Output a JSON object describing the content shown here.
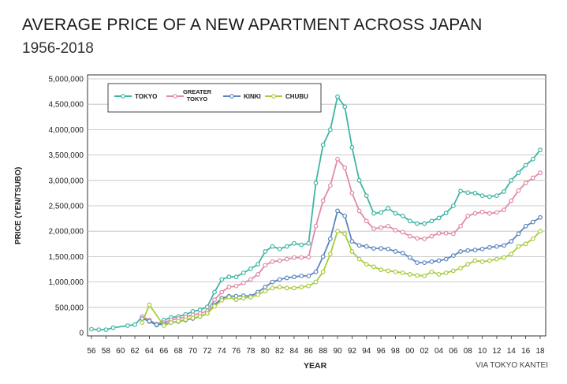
{
  "chart_data": {
    "type": "line",
    "title": "AVERAGE PRICE OF A NEW APARTMENT ACROSS JAPAN",
    "subtitle": "1956-2018",
    "xlabel": "YEAR",
    "ylabel": "PRICE (YEN/TSUBO)",
    "source": "VIA TOKYO KANTEI",
    "ylim": [
      0,
      5000000
    ],
    "xlim": [
      1956,
      2018
    ],
    "yticks": [
      0,
      500000,
      1000000,
      1500000,
      2000000,
      2500000,
      3000000,
      3500000,
      4000000,
      4500000,
      5000000
    ],
    "ytick_labels": [
      "0",
      "500,000",
      "1,000,000",
      "1,500,000",
      "2,000,000",
      "2,500,000",
      "3,000,000",
      "3,500,000",
      "4,000,000",
      "4,500,000",
      "5,000,000"
    ],
    "xticks": [
      1956,
      1958,
      1960,
      1962,
      1964,
      1966,
      1968,
      1970,
      1972,
      1974,
      1976,
      1978,
      1980,
      1982,
      1984,
      1986,
      1988,
      1990,
      1992,
      1994,
      1996,
      1998,
      2000,
      2002,
      2004,
      2006,
      2008,
      2010,
      2012,
      2014,
      2016,
      2018
    ],
    "xtick_labels": [
      "56",
      "58",
      "60",
      "62",
      "64",
      "66",
      "68",
      "70",
      "72",
      "74",
      "76",
      "78",
      "80",
      "82",
      "84",
      "86",
      "88",
      "90",
      "92",
      "94",
      "96",
      "98",
      "00",
      "02",
      "04",
      "06",
      "08",
      "10",
      "12",
      "14",
      "16",
      "18"
    ],
    "grid": true,
    "legend_position": "top-left",
    "series": [
      {
        "name": "TOKYO",
        "color": "#3fb5a5",
        "points": [
          [
            1956,
            70000
          ],
          [
            1957,
            60000
          ],
          [
            1958,
            60000
          ],
          [
            1959,
            100000
          ],
          [
            1961,
            140000
          ],
          [
            1962,
            160000
          ],
          [
            1963,
            310000
          ],
          [
            1964,
            220000
          ],
          [
            1965,
            150000
          ],
          [
            1966,
            250000
          ],
          [
            1967,
            300000
          ],
          [
            1968,
            320000
          ],
          [
            1969,
            360000
          ],
          [
            1970,
            420000
          ],
          [
            1971,
            450000
          ],
          [
            1972,
            510000
          ],
          [
            1973,
            800000
          ],
          [
            1974,
            1050000
          ],
          [
            1975,
            1100000
          ],
          [
            1976,
            1100000
          ],
          [
            1977,
            1180000
          ],
          [
            1978,
            1260000
          ],
          [
            1979,
            1350000
          ],
          [
            1980,
            1600000
          ],
          [
            1981,
            1700000
          ],
          [
            1982,
            1650000
          ],
          [
            1983,
            1700000
          ],
          [
            1984,
            1760000
          ],
          [
            1985,
            1730000
          ],
          [
            1986,
            1760000
          ],
          [
            1987,
            2950000
          ],
          [
            1988,
            3700000
          ],
          [
            1989,
            4000000
          ],
          [
            1990,
            4650000
          ],
          [
            1991,
            4450000
          ],
          [
            1992,
            3650000
          ],
          [
            1993,
            3000000
          ],
          [
            1994,
            2700000
          ],
          [
            1995,
            2350000
          ],
          [
            1996,
            2370000
          ],
          [
            1997,
            2450000
          ],
          [
            1998,
            2350000
          ],
          [
            1999,
            2300000
          ],
          [
            2000,
            2200000
          ],
          [
            2001,
            2150000
          ],
          [
            2002,
            2150000
          ],
          [
            2003,
            2200000
          ],
          [
            2004,
            2260000
          ],
          [
            2005,
            2360000
          ],
          [
            2006,
            2500000
          ],
          [
            2007,
            2790000
          ],
          [
            2008,
            2760000
          ],
          [
            2009,
            2750000
          ],
          [
            2010,
            2700000
          ],
          [
            2011,
            2680000
          ],
          [
            2012,
            2700000
          ],
          [
            2013,
            2780000
          ],
          [
            2014,
            3000000
          ],
          [
            2015,
            3150000
          ],
          [
            2016,
            3300000
          ],
          [
            2017,
            3420000
          ],
          [
            2018,
            3600000
          ]
        ]
      },
      {
        "name": "GREATER TOKYO",
        "color": "#e08aa8",
        "points": [
          [
            1963,
            320000
          ],
          [
            1964,
            250000
          ],
          [
            1965,
            170000
          ],
          [
            1966,
            200000
          ],
          [
            1967,
            250000
          ],
          [
            1968,
            280000
          ],
          [
            1969,
            310000
          ],
          [
            1970,
            350000
          ],
          [
            1971,
            380000
          ],
          [
            1972,
            430000
          ],
          [
            1973,
            650000
          ],
          [
            1974,
            800000
          ],
          [
            1975,
            900000
          ],
          [
            1976,
            920000
          ],
          [
            1977,
            980000
          ],
          [
            1978,
            1050000
          ],
          [
            1979,
            1150000
          ],
          [
            1980,
            1330000
          ],
          [
            1981,
            1400000
          ],
          [
            1982,
            1420000
          ],
          [
            1983,
            1450000
          ],
          [
            1984,
            1480000
          ],
          [
            1985,
            1480000
          ],
          [
            1986,
            1490000
          ],
          [
            1987,
            2100000
          ],
          [
            1988,
            2600000
          ],
          [
            1989,
            2900000
          ],
          [
            1990,
            3420000
          ],
          [
            1991,
            3250000
          ],
          [
            1992,
            2750000
          ],
          [
            1993,
            2400000
          ],
          [
            1994,
            2200000
          ],
          [
            1995,
            2050000
          ],
          [
            1996,
            2070000
          ],
          [
            1997,
            2100000
          ],
          [
            1998,
            2020000
          ],
          [
            1999,
            1980000
          ],
          [
            2000,
            1900000
          ],
          [
            2001,
            1860000
          ],
          [
            2002,
            1850000
          ],
          [
            2003,
            1900000
          ],
          [
            2004,
            1960000
          ],
          [
            2005,
            1960000
          ],
          [
            2006,
            1950000
          ],
          [
            2007,
            2100000
          ],
          [
            2008,
            2300000
          ],
          [
            2009,
            2350000
          ],
          [
            2010,
            2380000
          ],
          [
            2011,
            2350000
          ],
          [
            2012,
            2370000
          ],
          [
            2013,
            2420000
          ],
          [
            2014,
            2600000
          ],
          [
            2015,
            2800000
          ],
          [
            2016,
            2950000
          ],
          [
            2017,
            3050000
          ],
          [
            2018,
            3150000
          ]
        ]
      },
      {
        "name": "KINKI",
        "color": "#5b86bf",
        "points": [
          [
            1963,
            280000
          ],
          [
            1964,
            230000
          ],
          [
            1965,
            160000
          ],
          [
            1966,
            170000
          ],
          [
            1967,
            200000
          ],
          [
            1968,
            220000
          ],
          [
            1969,
            250000
          ],
          [
            1970,
            280000
          ],
          [
            1971,
            320000
          ],
          [
            1972,
            380000
          ],
          [
            1973,
            550000
          ],
          [
            1974,
            680000
          ],
          [
            1975,
            720000
          ],
          [
            1976,
            720000
          ],
          [
            1977,
            730000
          ],
          [
            1978,
            720000
          ],
          [
            1979,
            800000
          ],
          [
            1980,
            900000
          ],
          [
            1981,
            1000000
          ],
          [
            1982,
            1050000
          ],
          [
            1983,
            1080000
          ],
          [
            1984,
            1100000
          ],
          [
            1985,
            1120000
          ],
          [
            1986,
            1120000
          ],
          [
            1987,
            1200000
          ],
          [
            1988,
            1500000
          ],
          [
            1989,
            1850000
          ],
          [
            1990,
            2400000
          ],
          [
            1991,
            2300000
          ],
          [
            1992,
            1800000
          ],
          [
            1993,
            1720000
          ],
          [
            1994,
            1700000
          ],
          [
            1995,
            1660000
          ],
          [
            1996,
            1660000
          ],
          [
            1997,
            1650000
          ],
          [
            1998,
            1600000
          ],
          [
            1999,
            1570000
          ],
          [
            2000,
            1480000
          ],
          [
            2001,
            1380000
          ],
          [
            2002,
            1380000
          ],
          [
            2003,
            1400000
          ],
          [
            2004,
            1420000
          ],
          [
            2005,
            1450000
          ],
          [
            2006,
            1520000
          ],
          [
            2007,
            1600000
          ],
          [
            2008,
            1620000
          ],
          [
            2009,
            1630000
          ],
          [
            2010,
            1650000
          ],
          [
            2011,
            1680000
          ],
          [
            2012,
            1700000
          ],
          [
            2013,
            1720000
          ],
          [
            2014,
            1800000
          ],
          [
            2015,
            1950000
          ],
          [
            2016,
            2100000
          ],
          [
            2017,
            2180000
          ],
          [
            2018,
            2270000
          ]
        ]
      },
      {
        "name": "CHUBU",
        "color": "#a8cc3c",
        "points": [
          [
            1963,
            200000
          ],
          [
            1964,
            550000
          ],
          [
            1966,
            140000
          ],
          [
            1967,
            200000
          ],
          [
            1968,
            230000
          ],
          [
            1969,
            260000
          ],
          [
            1970,
            290000
          ],
          [
            1971,
            320000
          ],
          [
            1972,
            380000
          ],
          [
            1973,
            520000
          ],
          [
            1974,
            640000
          ],
          [
            1975,
            700000
          ],
          [
            1976,
            650000
          ],
          [
            1977,
            680000
          ],
          [
            1978,
            700000
          ],
          [
            1979,
            750000
          ],
          [
            1980,
            820000
          ],
          [
            1981,
            880000
          ],
          [
            1982,
            900000
          ],
          [
            1983,
            880000
          ],
          [
            1984,
            880000
          ],
          [
            1985,
            900000
          ],
          [
            1986,
            920000
          ],
          [
            1987,
            1000000
          ],
          [
            1988,
            1200000
          ],
          [
            1989,
            1550000
          ],
          [
            1990,
            2000000
          ],
          [
            1991,
            1950000
          ],
          [
            1992,
            1600000
          ],
          [
            1993,
            1450000
          ],
          [
            1994,
            1350000
          ],
          [
            1995,
            1300000
          ],
          [
            1996,
            1240000
          ],
          [
            1997,
            1220000
          ],
          [
            1998,
            1200000
          ],
          [
            1999,
            1180000
          ],
          [
            2000,
            1150000
          ],
          [
            2001,
            1130000
          ],
          [
            2002,
            1120000
          ],
          [
            2003,
            1200000
          ],
          [
            2004,
            1150000
          ],
          [
            2005,
            1180000
          ],
          [
            2006,
            1220000
          ],
          [
            2007,
            1270000
          ],
          [
            2008,
            1350000
          ],
          [
            2009,
            1420000
          ],
          [
            2010,
            1400000
          ],
          [
            2011,
            1420000
          ],
          [
            2012,
            1450000
          ],
          [
            2013,
            1480000
          ],
          [
            2014,
            1550000
          ],
          [
            2015,
            1700000
          ],
          [
            2016,
            1750000
          ],
          [
            2017,
            1850000
          ],
          [
            2018,
            2000000
          ]
        ]
      }
    ]
  }
}
